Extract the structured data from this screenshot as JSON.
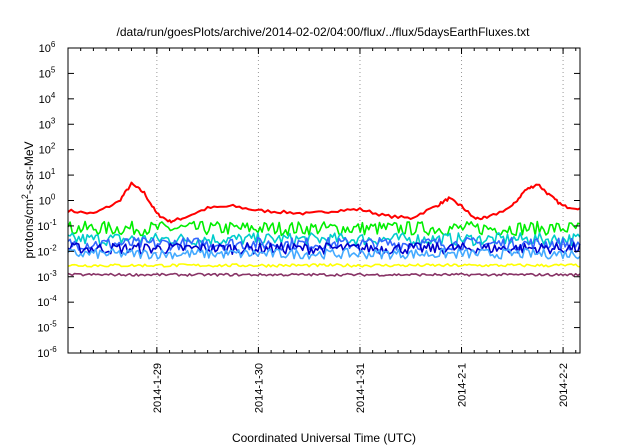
{
  "chart_data": {
    "type": "line",
    "title": "/data/run/goesPlots/archive/2014-02-02/04:00/flux/../flux/5daysEarthFluxes.txt",
    "xlabel": "Coordinated Universal Time (UTC)",
    "ylabel": {
      "pre": "protons/cm",
      "sup": "2",
      "post": "-s-sr-MeV"
    },
    "yscale": "log",
    "ylim": [
      1e-06,
      1000000.0
    ],
    "y_ticks": [
      {
        "base": "10",
        "exp": "6"
      },
      {
        "base": "10",
        "exp": "5"
      },
      {
        "base": "10",
        "exp": "4"
      },
      {
        "base": "10",
        "exp": "3"
      },
      {
        "base": "10",
        "exp": "2"
      },
      {
        "base": "10",
        "exp": "1"
      },
      {
        "base": "10",
        "exp": "0"
      },
      {
        "base": "10",
        "exp": "-1"
      },
      {
        "base": "10",
        "exp": "-2"
      },
      {
        "base": "10",
        "exp": "-3"
      },
      {
        "base": "10",
        "exp": "-4"
      },
      {
        "base": "10",
        "exp": "-5"
      },
      {
        "base": "10",
        "exp": "-6"
      }
    ],
    "xlim": [
      "2014-01-28T03:00",
      "2014-02-02T04:00"
    ],
    "x_ticks": [
      {
        "label": "2014-1-29",
        "value": "2014-01-29T00:00"
      },
      {
        "label": "2014-1-30",
        "value": "2014-01-30T00:00"
      },
      {
        "label": "2014-1-31",
        "value": "2014-01-31T00:00"
      },
      {
        "label": "2014-2-1",
        "value": "2014-02-01T00:00"
      },
      {
        "label": "2014-2-2",
        "value": "2014-02-02T00:00"
      }
    ],
    "grid": true,
    "series": [
      {
        "color": "#ff0000",
        "x": [
          "2014-01-28T03:00",
          "2014-01-28T09:00",
          "2014-01-28T15:00",
          "2014-01-28T18:00",
          "2014-01-28T21:00",
          "2014-01-29T00:00",
          "2014-01-29T03:00",
          "2014-01-29T06:00",
          "2014-01-29T12:00",
          "2014-01-29T18:00",
          "2014-01-30T00:00",
          "2014-01-30T06:00",
          "2014-01-30T12:00",
          "2014-01-30T18:00",
          "2014-01-31T00:00",
          "2014-01-31T06:00",
          "2014-01-31T12:00",
          "2014-01-31T18:00",
          "2014-01-31T21:00",
          "2014-02-01T00:00",
          "2014-02-01T03:00",
          "2014-02-01T06:00",
          "2014-02-01T12:00",
          "2014-02-01T15:00",
          "2014-02-01T18:00",
          "2014-02-01T21:00",
          "2014-02-02T00:00",
          "2014-02-02T04:00"
        ],
        "values": [
          0.4,
          0.3,
          0.9,
          4.5,
          2.0,
          0.3,
          0.15,
          0.2,
          0.5,
          0.6,
          0.4,
          0.35,
          0.3,
          0.4,
          0.45,
          0.25,
          0.2,
          0.6,
          1.2,
          0.6,
          0.2,
          0.2,
          0.6,
          2.5,
          4.5,
          1.5,
          0.6,
          0.5
        ]
      },
      {
        "color": "#00ee00",
        "level": 0.08,
        "spread": 0.55
      },
      {
        "color": "#00cccc",
        "level": 0.03,
        "spread": 0.5
      },
      {
        "color": "#3366ff",
        "level": 0.02,
        "spread": 0.5
      },
      {
        "color": "#0000cc",
        "level": 0.013,
        "spread": 0.45
      },
      {
        "color": "#44aaff",
        "level": 0.008,
        "spread": 0.4
      },
      {
        "color": "#ffff00",
        "level": 0.0028,
        "spread": 0.12
      },
      {
        "color": "#883366",
        "level": 0.0012,
        "spread": 0.1
      }
    ]
  }
}
